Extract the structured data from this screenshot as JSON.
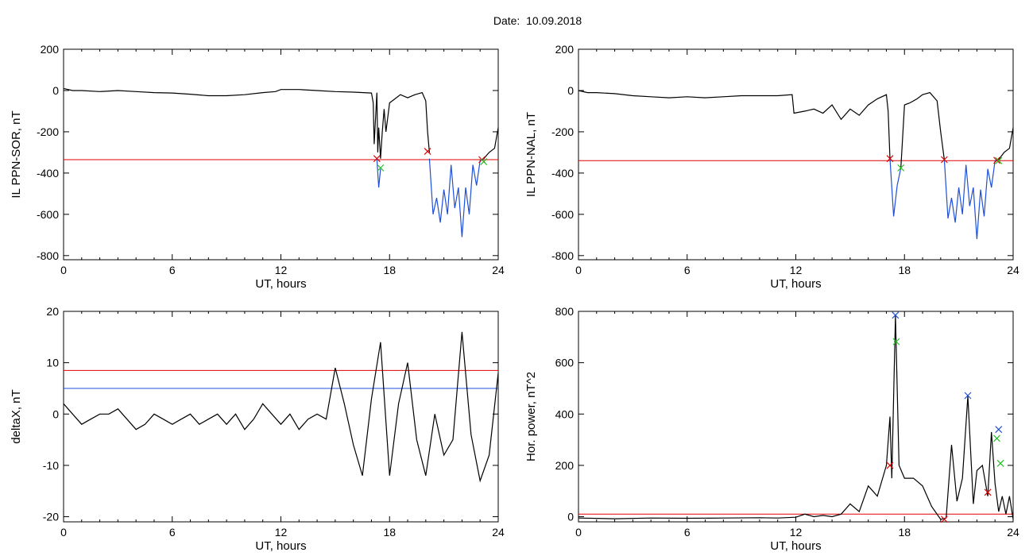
{
  "figure_title": "Date:  10.09.2018",
  "chart_data": [
    {
      "id": "p1",
      "type": "line",
      "xlabel": "UT, hours",
      "ylabel": "IL PPN-SOR, nT",
      "xlim": [
        0,
        24
      ],
      "ylim": [
        -820,
        200
      ],
      "xticks": [
        0,
        6,
        12,
        18,
        24
      ],
      "yticks": [
        -800,
        -600,
        -400,
        -200,
        0,
        200
      ],
      "hlines": [
        {
          "y": -335,
          "color": "#e00000"
        }
      ],
      "series": [
        {
          "color": "#000000",
          "x": [
            0,
            0.5,
            1,
            2,
            3,
            4,
            5,
            6,
            7,
            8,
            9,
            10,
            11,
            11.7,
            12,
            12.5,
            13,
            14,
            15,
            16,
            17,
            17.1,
            17.15,
            17.2,
            17.3,
            17.35,
            17.4,
            17.5,
            17.6,
            17.7,
            17.8,
            17.9,
            18,
            18.3,
            18.6,
            19,
            19.4,
            19.8,
            20,
            20.1,
            20.2
          ],
          "y": [
            10,
            0,
            0,
            -5,
            0,
            -5,
            -10,
            -12,
            -18,
            -25,
            -25,
            -20,
            -10,
            -5,
            5,
            5,
            5,
            0,
            -5,
            -8,
            -12,
            -60,
            -260,
            -180,
            -10,
            -300,
            -180,
            -330,
            -200,
            -90,
            -200,
            -130,
            -60,
            -40,
            -20,
            -35,
            -20,
            -10,
            -50,
            -200,
            -300
          ]
        },
        {
          "color": "#1f4fd8",
          "x": [
            20.2,
            20.4,
            20.6,
            20.8,
            21,
            21.2,
            21.4,
            21.6,
            21.8,
            22,
            22.2,
            22.4,
            22.6,
            22.8,
            23,
            23.2
          ],
          "y": [
            -330,
            -600,
            -520,
            -640,
            -480,
            -600,
            -360,
            -570,
            -470,
            -710,
            -470,
            -600,
            -360,
            -460,
            -340,
            -330
          ]
        },
        {
          "color": "#1f4fd8",
          "x": [
            17.3,
            17.4,
            17.5
          ],
          "y": [
            -330,
            -470,
            -380
          ]
        },
        {
          "color": "#000000",
          "x": [
            23.2,
            23.5,
            23.8,
            24
          ],
          "y": [
            -330,
            -300,
            -280,
            -180
          ]
        }
      ],
      "markers": [
        {
          "x": 17.3,
          "y": -330,
          "color": "#e00000"
        },
        {
          "x": 20.1,
          "y": -295,
          "color": "#e00000"
        },
        {
          "x": 23.1,
          "y": -335,
          "color": "#e00000"
        },
        {
          "x": 17.5,
          "y": -375,
          "color": "#20c020"
        },
        {
          "x": 23.2,
          "y": -345,
          "color": "#20c020"
        }
      ]
    },
    {
      "id": "p2",
      "type": "line",
      "xlabel": "UT, hours",
      "ylabel": "IL PPN-NAL, nT",
      "xlim": [
        0,
        24
      ],
      "ylim": [
        -820,
        200
      ],
      "xticks": [
        0,
        6,
        12,
        18,
        24
      ],
      "yticks": [
        -800,
        -600,
        -400,
        -200,
        0,
        200
      ],
      "hlines": [
        {
          "y": -340,
          "color": "#e00000"
        }
      ],
      "series": [
        {
          "color": "#000000",
          "x": [
            0,
            0.5,
            1,
            2,
            3,
            4,
            5,
            6,
            7,
            8,
            9,
            10,
            11,
            11.8,
            11.9,
            12.5,
            13,
            13.5,
            14,
            14.5,
            15,
            15.5,
            16,
            16.5,
            17,
            17.1,
            17.2
          ],
          "y": [
            0,
            -10,
            -10,
            -15,
            -25,
            -30,
            -35,
            -30,
            -35,
            -30,
            -25,
            -25,
            -25,
            -20,
            -110,
            -100,
            -90,
            -110,
            -70,
            -140,
            -90,
            -120,
            -70,
            -40,
            -20,
            -100,
            -330
          ]
        },
        {
          "color": "#1f4fd8",
          "x": [
            17.2,
            17.4,
            17.6,
            17.8
          ],
          "y": [
            -330,
            -610,
            -460,
            -375
          ]
        },
        {
          "color": "#000000",
          "x": [
            17.8,
            18,
            18.3,
            18.7,
            19,
            19.4,
            19.8,
            20,
            20.2
          ],
          "y": [
            -375,
            -70,
            -60,
            -40,
            -20,
            -10,
            -50,
            -200,
            -335
          ]
        },
        {
          "color": "#1f4fd8",
          "x": [
            20.2,
            20.4,
            20.6,
            20.8,
            21,
            21.2,
            21.4,
            21.6,
            21.8,
            22,
            22.2,
            22.4,
            22.6,
            22.8,
            23,
            23.2
          ],
          "y": [
            -335,
            -620,
            -520,
            -640,
            -470,
            -600,
            -360,
            -560,
            -470,
            -720,
            -480,
            -610,
            -380,
            -470,
            -340,
            -335
          ]
        },
        {
          "color": "#000000",
          "x": [
            23.2,
            23.5,
            23.8,
            24
          ],
          "y": [
            -335,
            -300,
            -280,
            -180
          ]
        }
      ],
      "markers": [
        {
          "x": 17.2,
          "y": -330,
          "color": "#e00000"
        },
        {
          "x": 20.2,
          "y": -335,
          "color": "#e00000"
        },
        {
          "x": 23.1,
          "y": -338,
          "color": "#e00000"
        },
        {
          "x": 17.8,
          "y": -375,
          "color": "#20c020"
        },
        {
          "x": 23.2,
          "y": -340,
          "color": "#20c020"
        }
      ]
    },
    {
      "id": "p3",
      "type": "line",
      "xlabel": "UT, hours",
      "ylabel": "deltaX, nT",
      "xlim": [
        0,
        24
      ],
      "ylim": [
        -21,
        20
      ],
      "xticks": [
        0,
        6,
        12,
        18,
        24
      ],
      "yticks": [
        -20,
        -10,
        0,
        10,
        20
      ],
      "hlines": [
        {
          "y": 8.5,
          "color": "#e00000"
        },
        {
          "y": 5,
          "color": "#1f4fd8"
        }
      ],
      "series": [
        {
          "color": "#000000",
          "x": [
            0,
            0.5,
            1,
            1.5,
            2,
            2.5,
            3,
            3.5,
            4,
            4.5,
            5,
            5.5,
            6,
            6.5,
            7,
            7.5,
            8,
            8.5,
            9,
            9.5,
            10,
            10.5,
            11,
            11.5,
            12,
            12.5,
            13,
            13.5,
            14,
            14.5,
            15,
            15.5,
            16,
            16.5,
            17,
            17.5,
            18,
            18.5,
            19,
            19.5,
            20,
            20.5,
            21,
            21.5,
            22,
            22.5,
            23,
            23.5,
            24
          ],
          "y": [
            2,
            0,
            -2,
            -1,
            0,
            0,
            1,
            -1,
            -3,
            -2,
            0,
            -1,
            -2,
            -1,
            0,
            -2,
            -1,
            0,
            -2,
            0,
            -3,
            -1,
            2,
            0,
            -2,
            0,
            -3,
            -1,
            0,
            -1,
            9,
            2,
            -6,
            -12,
            3,
            14,
            -12,
            2,
            10,
            -5,
            -12,
            0,
            -8,
            -5,
            16,
            -4,
            -13,
            -8,
            8
          ]
        }
      ],
      "markers": []
    },
    {
      "id": "p4",
      "type": "line",
      "xlabel": "UT, hours",
      "ylabel": "Hor. power, nT^2",
      "xlim": [
        0,
        24
      ],
      "ylim": [
        -20,
        800
      ],
      "xticks": [
        0,
        6,
        12,
        18,
        24
      ],
      "yticks": [
        0,
        200,
        400,
        600,
        800
      ],
      "hlines": [
        {
          "y": 10,
          "color": "#e00000"
        }
      ],
      "series": [
        {
          "color": "#000000",
          "x": [
            0,
            2,
            4,
            6,
            8,
            10,
            11,
            12,
            12.5,
            13,
            13.5,
            14,
            14.5,
            15,
            15.5,
            16,
            16.5,
            17,
            17.2,
            17.3,
            17.5,
            17.7,
            18,
            18.5,
            19,
            19.5,
            20,
            20.3,
            20.6,
            20.9,
            21.2,
            21.5,
            21.8,
            22,
            22.3,
            22.6,
            22.8,
            23,
            23.2,
            23.4,
            23.6,
            23.8,
            24
          ],
          "y": [
            -5,
            -8,
            -5,
            -6,
            -5,
            -4,
            -5,
            -2,
            10,
            0,
            5,
            0,
            10,
            50,
            20,
            120,
            80,
            200,
            390,
            150,
            785,
            200,
            150,
            150,
            120,
            40,
            -10,
            -5,
            280,
            60,
            150,
            470,
            50,
            180,
            200,
            80,
            330,
            130,
            20,
            80,
            10,
            80,
            -10
          ]
        }
      ],
      "markers": [
        {
          "x": 17.5,
          "y": 785,
          "color": "#1f4fd8"
        },
        {
          "x": 21.5,
          "y": 472,
          "color": "#1f4fd8"
        },
        {
          "x": 23.2,
          "y": 340,
          "color": "#1f4fd8"
        },
        {
          "x": 17.55,
          "y": 682,
          "color": "#20c020"
        },
        {
          "x": 23.1,
          "y": 305,
          "color": "#20c020"
        },
        {
          "x": 23.3,
          "y": 208,
          "color": "#20c020"
        },
        {
          "x": 17.2,
          "y": 200,
          "color": "#e00000"
        },
        {
          "x": 22.6,
          "y": 95,
          "color": "#e00000"
        },
        {
          "x": 20.2,
          "y": -10,
          "color": "#e00000"
        }
      ]
    }
  ]
}
